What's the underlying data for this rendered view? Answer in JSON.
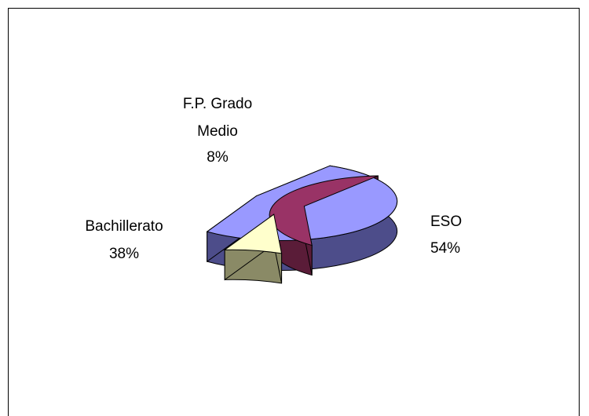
{
  "chart_data": {
    "type": "pie",
    "title": "",
    "style": "3d-exploded",
    "slices": [
      {
        "label": "ESO",
        "percent_label": "54%",
        "value": 54,
        "color": "#9999ff",
        "side_color": "#4d4d8a"
      },
      {
        "label": "Bachillerato",
        "percent_label": "38%",
        "value": 38,
        "color": "#993366",
        "side_color": "#5a1c38"
      },
      {
        "label": "F.P. Grado Medio",
        "label_lines": [
          "F.P. Grado",
          "Medio"
        ],
        "percent_label": "8%",
        "value": 8,
        "color": "#ffffcc",
        "side_color": "#8a8a66"
      }
    ]
  }
}
